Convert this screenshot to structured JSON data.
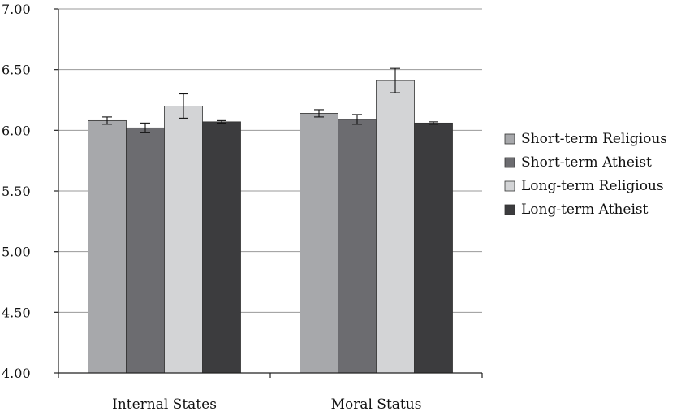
{
  "chart_data": {
    "type": "bar",
    "categories": [
      "Internal States",
      "Moral Status"
    ],
    "series": [
      {
        "name": "Short-term Religious",
        "values": [
          6.08,
          6.14
        ],
        "errors": [
          0.03,
          0.03
        ],
        "color": "#a7a8ab"
      },
      {
        "name": "Short-term Atheist",
        "values": [
          6.02,
          6.09
        ],
        "errors": [
          0.04,
          0.04
        ],
        "color": "#6c6c70"
      },
      {
        "name": "Long-term Religious",
        "values": [
          6.2,
          6.41
        ],
        "errors": [
          0.1,
          0.1
        ],
        "color": "#d3d4d6"
      },
      {
        "name": "Long-term Atheist",
        "values": [
          6.07,
          6.06
        ],
        "errors": [
          0.01,
          0.01
        ],
        "color": "#3c3c3e"
      }
    ],
    "yticks": [
      "4.00",
      "4.50",
      "5.00",
      "5.50",
      "6.00",
      "6.50",
      "7.00"
    ],
    "ylim": [
      4.0,
      7.0
    ],
    "grid": true,
    "legend": "right"
  }
}
